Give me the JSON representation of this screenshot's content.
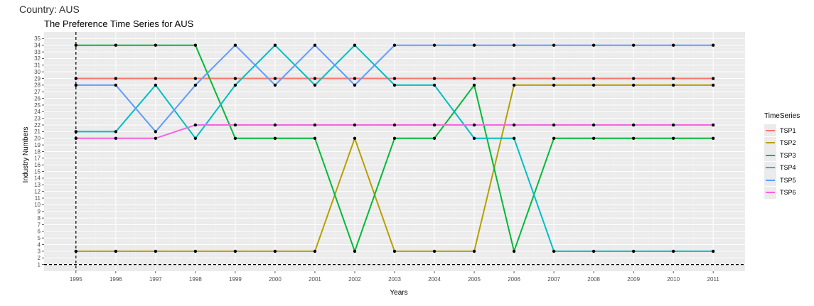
{
  "header": {
    "country_label": "Country: AUS"
  },
  "chart_data": {
    "type": "line",
    "title": "The Preference Time Series for  AUS",
    "xlabel": "Years",
    "ylabel": "Industry Numbers",
    "x": [
      1995,
      1996,
      1997,
      1998,
      1999,
      2000,
      2001,
      2002,
      2003,
      2004,
      2005,
      2006,
      2007,
      2008,
      2009,
      2010,
      2011
    ],
    "xlim": [
      1994.2,
      2011.8
    ],
    "ylim": [
      0,
      36
    ],
    "y_ticks": [
      1,
      2,
      3,
      4,
      5,
      6,
      7,
      8,
      9,
      10,
      11,
      12,
      13,
      14,
      15,
      16,
      17,
      18,
      19,
      20,
      21,
      22,
      23,
      24,
      25,
      26,
      27,
      28,
      29,
      30,
      31,
      32,
      33,
      34,
      35
    ],
    "grid": true,
    "legend_title": "TimeSeries",
    "legend_position": "right",
    "reference_lines": {
      "vertical_x": 1995,
      "horizontal_y": 1,
      "style": "dashed"
    },
    "series": [
      {
        "name": "TSP1",
        "color": "#F8766D",
        "values": [
          29,
          29,
          29,
          29,
          29,
          29,
          29,
          29,
          29,
          29,
          29,
          29,
          29,
          29,
          29,
          29,
          29
        ]
      },
      {
        "name": "TSP2",
        "color": "#B79F00",
        "values": [
          3,
          3,
          3,
          3,
          3,
          3,
          3,
          20,
          3,
          3,
          3,
          28,
          28,
          28,
          28,
          28,
          28
        ]
      },
      {
        "name": "TSP3",
        "color": "#00BA38",
        "values": [
          34,
          34,
          34,
          34,
          20,
          20,
          20,
          3,
          20,
          20,
          28,
          3,
          20,
          20,
          20,
          20,
          20
        ]
      },
      {
        "name": "TSP4",
        "color": "#00BFC4",
        "values": [
          21,
          21,
          28,
          20,
          28,
          34,
          28,
          34,
          28,
          28,
          20,
          20,
          3,
          3,
          3,
          3,
          3
        ]
      },
      {
        "name": "TSP5",
        "color": "#619CFF",
        "values": [
          28,
          28,
          21,
          28,
          34,
          28,
          34,
          28,
          34,
          34,
          34,
          34,
          34,
          34,
          34,
          34,
          34
        ]
      },
      {
        "name": "TSP6",
        "color": "#F564E3",
        "values": [
          20,
          20,
          20,
          22,
          22,
          22,
          22,
          22,
          22,
          22,
          22,
          22,
          22,
          22,
          22,
          22,
          22
        ]
      }
    ]
  }
}
